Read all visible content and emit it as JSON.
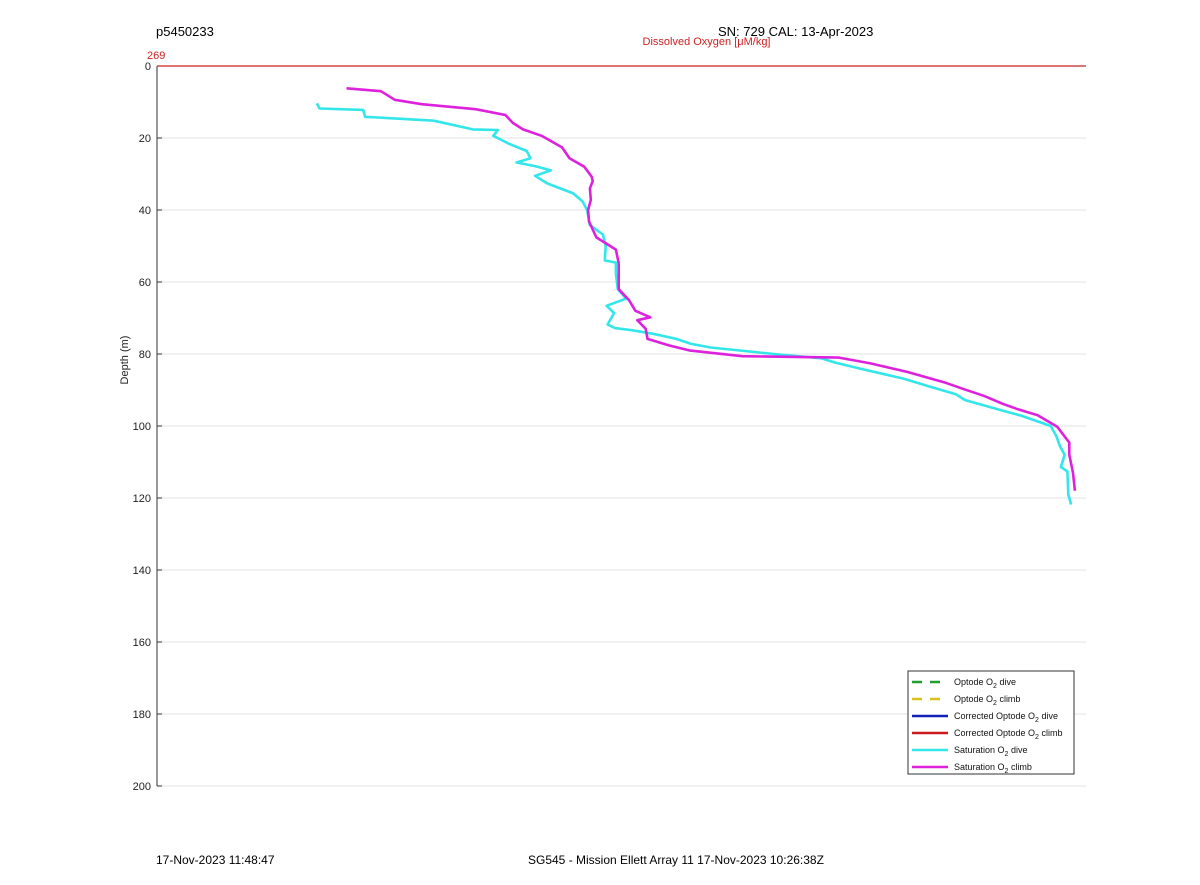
{
  "header": {
    "profile_id": "p5450233",
    "sensor_info": "SN: 729  CAL: 13-Apr-2023"
  },
  "footer": {
    "timestamp": "17-Nov-2023 11:48:47",
    "mission": "SG545 - Mission Ellett Array 11 17-Nov-2023 10:26:38Z"
  },
  "chart_data": {
    "type": "line",
    "top_axis_title": "Dissolved Oxygen [μM/kg]",
    "top_axis_value": "269",
    "ylabel": "Depth (m)",
    "xlabel": "",
    "ylim": [
      0,
      200
    ],
    "y_reversed": true,
    "yticks": [
      0,
      20,
      40,
      60,
      80,
      100,
      120,
      140,
      160,
      180,
      200
    ],
    "xlim": [
      0,
      1
    ],
    "grid": "horizontal",
    "legend_placement": "bottom-right",
    "reference_line": {
      "value": 269,
      "depth": 0,
      "color": "#cc2222"
    },
    "series": [
      {
        "name": "Optode O2 dive",
        "label_main": "Optode O",
        "label_sub": "2",
        "label_tail": " dive",
        "color": "#1f9f2f",
        "dash": true,
        "values": []
      },
      {
        "name": "Optode O2 climb",
        "label_main": "Optode O",
        "label_sub": "2",
        "label_tail": " climb",
        "color": "#d8c21a",
        "dash": true,
        "values": []
      },
      {
        "name": "Corrected Optode O2 dive",
        "label_main": "Corrected Optode O",
        "label_sub": "2",
        "label_tail": " dive",
        "color": "#1020b8",
        "dash": false,
        "values": []
      },
      {
        "name": "Corrected Optode O2 climb",
        "label_main": "Corrected Optode O",
        "label_sub": "2",
        "label_tail": " climb",
        "color": "#cc1a1a",
        "dash": false,
        "values": []
      },
      {
        "name": "Saturation O2 dive",
        "label_main": "Saturation O",
        "label_sub": "2",
        "label_tail": " dive",
        "color": "#33e6ea",
        "dash": false,
        "points": [
          [
            0.172,
            10.4
          ],
          [
            0.175,
            11.8
          ],
          [
            0.222,
            12.2
          ],
          [
            0.224,
            14.1
          ],
          [
            0.298,
            15.2
          ],
          [
            0.34,
            17.6
          ],
          [
            0.367,
            17.8
          ],
          [
            0.362,
            19.4
          ],
          [
            0.378,
            21.5
          ],
          [
            0.398,
            23.6
          ],
          [
            0.402,
            25.6
          ],
          [
            0.387,
            26.8
          ],
          [
            0.407,
            27.8
          ],
          [
            0.424,
            29.0
          ],
          [
            0.407,
            30.5
          ],
          [
            0.42,
            32.6
          ],
          [
            0.448,
            35.4
          ],
          [
            0.458,
            37.6
          ],
          [
            0.463,
            40.0
          ],
          [
            0.466,
            44.2
          ],
          [
            0.48,
            46.8
          ],
          [
            0.483,
            50.0
          ],
          [
            0.482,
            54.0
          ],
          [
            0.494,
            54.6
          ],
          [
            0.494,
            57.6
          ],
          [
            0.496,
            62.0
          ],
          [
            0.505,
            64.6
          ],
          [
            0.484,
            66.6
          ],
          [
            0.492,
            68.6
          ],
          [
            0.485,
            71.8
          ],
          [
            0.493,
            72.8
          ],
          [
            0.511,
            73.4
          ],
          [
            0.534,
            74.4
          ],
          [
            0.559,
            75.8
          ],
          [
            0.575,
            77.2
          ],
          [
            0.596,
            78.2
          ],
          [
            0.664,
            80.0
          ],
          [
            0.715,
            81.2
          ],
          [
            0.73,
            82.4
          ],
          [
            0.766,
            84.6
          ],
          [
            0.803,
            86.8
          ],
          [
            0.831,
            89.0
          ],
          [
            0.86,
            91.2
          ],
          [
            0.87,
            92.8
          ],
          [
            0.903,
            95.2
          ],
          [
            0.931,
            97.2
          ],
          [
            0.962,
            100.0
          ],
          [
            0.968,
            102.8
          ],
          [
            0.972,
            105.6
          ],
          [
            0.977,
            108.0
          ],
          [
            0.973,
            111.4
          ],
          [
            0.98,
            112.6
          ],
          [
            0.981,
            119.0
          ],
          [
            0.984,
            121.8
          ]
        ]
      },
      {
        "name": "Saturation O2 climb",
        "label_main": "Saturation O",
        "label_sub": "2",
        "label_tail": " climb",
        "color": "#dd22dd",
        "dash": false,
        "points": [
          [
            0.204,
            6.2
          ],
          [
            0.241,
            7.0
          ],
          [
            0.256,
            9.4
          ],
          [
            0.285,
            10.6
          ],
          [
            0.343,
            12.0
          ],
          [
            0.375,
            13.6
          ],
          [
            0.383,
            15.8
          ],
          [
            0.394,
            17.6
          ],
          [
            0.414,
            19.4
          ],
          [
            0.436,
            22.6
          ],
          [
            0.444,
            25.6
          ],
          [
            0.46,
            28.0
          ],
          [
            0.468,
            30.8
          ],
          [
            0.469,
            32.0
          ],
          [
            0.466,
            34.0
          ],
          [
            0.467,
            37.2
          ],
          [
            0.464,
            40.0
          ],
          [
            0.465,
            43.2
          ],
          [
            0.473,
            47.6
          ],
          [
            0.494,
            51.0
          ],
          [
            0.497,
            54.8
          ],
          [
            0.497,
            58.0
          ],
          [
            0.497,
            62.0
          ],
          [
            0.508,
            65.0
          ],
          [
            0.515,
            68.0
          ],
          [
            0.531,
            69.8
          ],
          [
            0.517,
            70.6
          ],
          [
            0.526,
            73.0
          ],
          [
            0.528,
            75.8
          ],
          [
            0.551,
            77.6
          ],
          [
            0.573,
            79.0
          ],
          [
            0.63,
            80.6
          ],
          [
            0.734,
            81.0
          ],
          [
            0.768,
            82.6
          ],
          [
            0.808,
            85.0
          ],
          [
            0.849,
            88.0
          ],
          [
            0.869,
            89.8
          ],
          [
            0.89,
            91.6
          ],
          [
            0.91,
            93.8
          ],
          [
            0.925,
            95.2
          ],
          [
            0.948,
            97.0
          ],
          [
            0.969,
            100.2
          ],
          [
            0.982,
            104.6
          ],
          [
            0.982,
            108.0
          ],
          [
            0.986,
            113.0
          ],
          [
            0.988,
            118.0
          ]
        ]
      }
    ]
  }
}
